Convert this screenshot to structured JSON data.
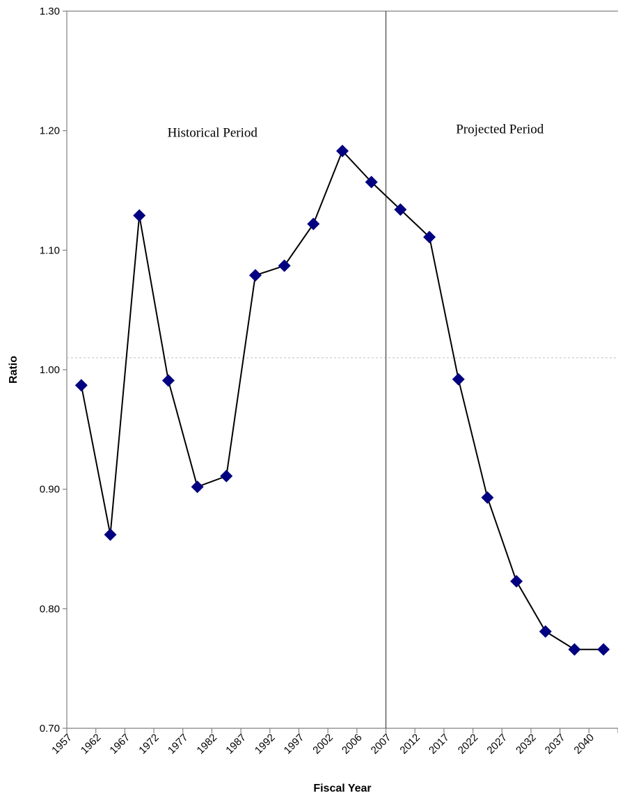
{
  "chart_data": {
    "type": "line",
    "title": "",
    "xlabel": "Fiscal Year",
    "ylabel": "Ratio",
    "ylim": [
      0.7,
      1.3
    ],
    "y_ticks": [
      "0.70",
      "0.80",
      "0.90",
      "1.00",
      "1.10",
      "1.20",
      "1.30"
    ],
    "categories": [
      "1957",
      "1962",
      "1967",
      "1972",
      "1977",
      "1982",
      "1987",
      "1992",
      "1997",
      "2002",
      "2006",
      "2007",
      "2012",
      "2017",
      "2022",
      "2027",
      "2032",
      "2037",
      "2040"
    ],
    "points": [
      {
        "x": "1957",
        "y": 0.987
      },
      {
        "x": "1962",
        "y": 0.862
      },
      {
        "x": "1967",
        "y": 1.129
      },
      {
        "x": "1972",
        "y": 0.991
      },
      {
        "x": "1977",
        "y": 0.902
      },
      {
        "x": "1982",
        "y": 0.911
      },
      {
        "x": "1987",
        "y": 1.079
      },
      {
        "x": "1992",
        "y": 1.087
      },
      {
        "x": "1997",
        "y": 1.122
      },
      {
        "x": "2002",
        "y": 1.183
      },
      {
        "x": "2006",
        "y": 1.157
      },
      {
        "x": "2007",
        "y": 1.134
      },
      {
        "x": "2012",
        "y": 1.111
      },
      {
        "x": "2017",
        "y": 0.992
      },
      {
        "x": "2022",
        "y": 0.893
      },
      {
        "x": "2027",
        "y": 0.823
      },
      {
        "x": "2032",
        "y": 0.781
      },
      {
        "x": "2037",
        "y": 0.766
      },
      {
        "x": "2040",
        "y": 0.766
      }
    ],
    "reference_line_y": 1.01,
    "divider_at": "2007",
    "annotations": [
      "Historical Period",
      "Projected Period"
    ],
    "grid": false,
    "legend": "none",
    "colors": {
      "marker": "#000080",
      "line": "#000000",
      "reference_line": "#c0c0c0",
      "divider": "#404040",
      "axis": "#808080"
    },
    "marker_shape": "diamond"
  }
}
